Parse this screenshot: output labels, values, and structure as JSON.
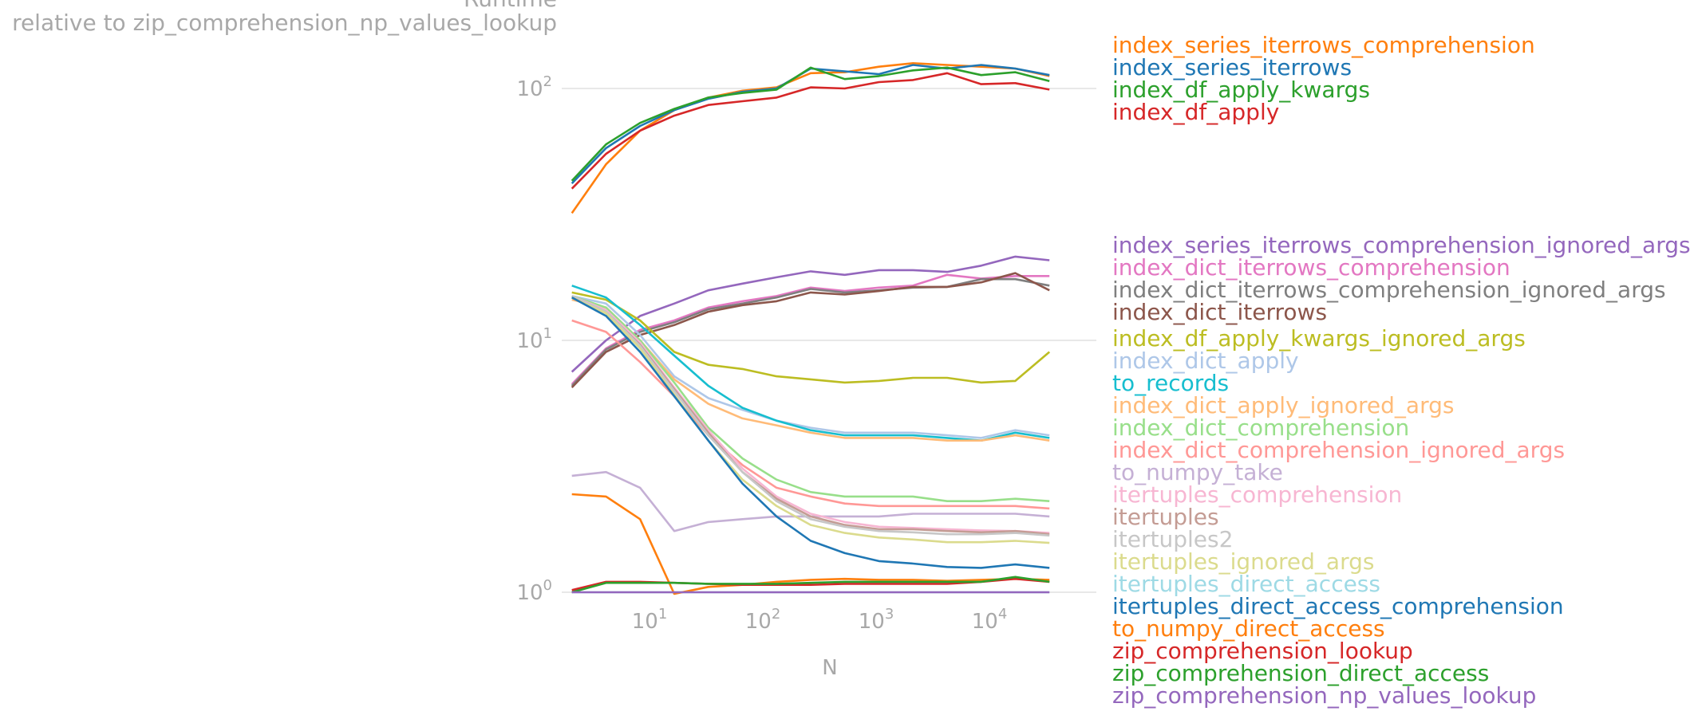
{
  "chart_data": {
    "type": "line",
    "title": "",
    "xlabel": "N",
    "ylabel_lines": [
      "Runtime",
      "relative to zip_comprehension_np_values_lookup"
    ],
    "x_scale": "log",
    "y_scale": "log",
    "xlim": [
      2,
      32768
    ],
    "ylim": [
      1,
      140
    ],
    "grid": "horizontal",
    "legend_placement": "right",
    "x_ticks": [
      {
        "base": "10",
        "exp": "1",
        "value": 10
      },
      {
        "base": "10",
        "exp": "2",
        "value": 100
      },
      {
        "base": "10",
        "exp": "3",
        "value": 1000
      },
      {
        "base": "10",
        "exp": "4",
        "value": 10000
      }
    ],
    "y_ticks": [
      {
        "base": "10",
        "exp": "0",
        "value": 1
      },
      {
        "base": "10",
        "exp": "1",
        "value": 10
      },
      {
        "base": "10",
        "exp": "2",
        "value": 100
      }
    ],
    "x": [
      2,
      4,
      8,
      16,
      32,
      64,
      128,
      256,
      512,
      1024,
      2048,
      4096,
      8192,
      16384,
      32768
    ],
    "series": [
      {
        "name": "index_series_iterrows_comprehension",
        "color": "#ff7f0e",
        "values": [
          32,
          50,
          68,
          82,
          92,
          98,
          101,
          115,
          116,
          122,
          126,
          124,
          122,
          120,
          112
        ]
      },
      {
        "name": "index_series_iterrows",
        "color": "#1f77b4",
        "values": [
          42,
          58,
          71,
          82,
          91,
          97,
          100,
          120,
          117,
          114,
          124,
          120,
          124,
          120,
          113
        ]
      },
      {
        "name": "index_df_apply_kwargs",
        "color": "#2ca02c",
        "values": [
          43,
          60,
          73,
          83,
          92,
          96,
          99,
          121,
          109,
          112,
          118,
          121,
          113,
          116,
          107
        ]
      },
      {
        "name": "index_df_apply",
        "color": "#d62728",
        "values": [
          40,
          55,
          68,
          78,
          86,
          89,
          92,
          101,
          100,
          106,
          108,
          115,
          104,
          105,
          99
        ]
      },
      {
        "name": "index_series_iterrows_comprehension_ignored_args",
        "color": "#9467bd",
        "values": [
          7.5,
          10.0,
          12.5,
          14.0,
          15.8,
          16.8,
          17.8,
          18.8,
          18.2,
          19.0,
          19.0,
          18.7,
          19.8,
          21.5,
          20.8
        ]
      },
      {
        "name": "index_dict_iterrows_comprehension",
        "color": "#e377c2",
        "values": [
          6.7,
          9.3,
          11.0,
          12.0,
          13.5,
          14.3,
          15.0,
          16.2,
          15.7,
          16.2,
          16.5,
          18.2,
          17.6,
          18.0,
          18.0
        ]
      },
      {
        "name": "index_dict_iterrows_comprehension_ignored_args",
        "color": "#7f7f7f",
        "values": [
          6.6,
          9.2,
          10.8,
          11.8,
          13.3,
          14.0,
          14.8,
          16.0,
          15.5,
          15.8,
          16.2,
          16.3,
          17.5,
          17.5,
          16.5
        ]
      },
      {
        "name": "index_dict_iterrows",
        "color": "#8c564b",
        "values": [
          6.5,
          9.0,
          10.5,
          11.5,
          13.0,
          13.8,
          14.3,
          15.5,
          15.2,
          15.7,
          16.3,
          16.3,
          17.0,
          18.5,
          15.8
        ]
      },
      {
        "name": "index_df_apply_kwargs_ignored_args",
        "color": "#bcbd22",
        "values": [
          15.5,
          14.5,
          12.0,
          9.0,
          8.0,
          7.7,
          7.2,
          7.0,
          6.8,
          6.9,
          7.1,
          7.1,
          6.8,
          6.9,
          9.0
        ]
      },
      {
        "name": "index_dict_apply",
        "color": "#aec7e8",
        "values": [
          15.0,
          14.0,
          10.5,
          7.2,
          5.9,
          5.3,
          4.8,
          4.5,
          4.3,
          4.3,
          4.3,
          4.2,
          4.1,
          4.4,
          4.2
        ]
      },
      {
        "name": "to_records",
        "color": "#17becf",
        "values": [
          16.5,
          14.8,
          11.5,
          8.7,
          6.6,
          5.4,
          4.8,
          4.4,
          4.2,
          4.2,
          4.2,
          4.1,
          4.0,
          4.3,
          4.1
        ]
      },
      {
        "name": "index_dict_apply_ignored_args",
        "color": "#ffbb78",
        "values": [
          14.5,
          13.5,
          10.0,
          7.0,
          5.6,
          4.9,
          4.6,
          4.3,
          4.1,
          4.1,
          4.1,
          4.0,
          4.0,
          4.2,
          4.0
        ]
      },
      {
        "name": "index_dict_comprehension",
        "color": "#98df8a",
        "values": [
          15.0,
          13.5,
          10.0,
          6.8,
          4.5,
          3.4,
          2.8,
          2.5,
          2.4,
          2.4,
          2.4,
          2.3,
          2.3,
          2.35,
          2.3
        ]
      },
      {
        "name": "index_dict_comprehension_ignored_args",
        "color": "#ff9896",
        "values": [
          12.0,
          10.8,
          8.2,
          6.0,
          4.2,
          3.2,
          2.6,
          2.4,
          2.25,
          2.2,
          2.2,
          2.2,
          2.2,
          2.2,
          2.15
        ]
      },
      {
        "name": "to_numpy_take",
        "color": "#c5b0d5",
        "values": [
          2.9,
          3.0,
          2.6,
          1.75,
          1.9,
          1.95,
          2.0,
          2.0,
          2.0,
          2.0,
          2.05,
          2.05,
          2.05,
          2.05,
          2.0
        ]
      },
      {
        "name": "itertuples_comprehension",
        "color": "#f7b6d2",
        "values": [
          15.0,
          13.2,
          9.8,
          6.5,
          4.4,
          3.1,
          2.4,
          2.05,
          1.9,
          1.82,
          1.8,
          1.78,
          1.76,
          1.75,
          1.72
        ]
      },
      {
        "name": "itertuples",
        "color": "#c49c94",
        "values": [
          15.0,
          13.0,
          9.6,
          6.4,
          4.3,
          3.0,
          2.35,
          2.0,
          1.85,
          1.78,
          1.78,
          1.75,
          1.73,
          1.75,
          1.7
        ]
      },
      {
        "name": "itertuples2",
        "color": "#c7c7c7",
        "values": [
          15.0,
          13.0,
          9.5,
          6.3,
          4.2,
          3.0,
          2.3,
          1.95,
          1.82,
          1.75,
          1.73,
          1.7,
          1.7,
          1.72,
          1.68
        ]
      },
      {
        "name": "itertuples_ignored_args",
        "color": "#dbdb8d",
        "values": [
          14.8,
          12.8,
          9.3,
          6.1,
          4.0,
          2.8,
          2.2,
          1.85,
          1.72,
          1.65,
          1.62,
          1.58,
          1.58,
          1.6,
          1.57
        ]
      },
      {
        "name": "itertuples_direct_access",
        "color": "#9edae5",
        "values": [
          1.0,
          1.0,
          1.0,
          1.0,
          1.0,
          1.0,
          1.0,
          1.0,
          1.0,
          1.0,
          1.0,
          1.0,
          1.0,
          1.0,
          1.0
        ]
      },
      {
        "name": "itertuples_direct_access_comprehension",
        "color": "#1f77b4",
        "values": [
          14.8,
          12.5,
          9.0,
          6.0,
          4.0,
          2.7,
          2.0,
          1.6,
          1.43,
          1.33,
          1.3,
          1.26,
          1.25,
          1.29,
          1.25
        ]
      },
      {
        "name": "to_numpy_direct_access",
        "color": "#ff7f0e",
        "values": [
          2.45,
          2.4,
          1.95,
          0.98,
          1.05,
          1.07,
          1.1,
          1.12,
          1.13,
          1.12,
          1.12,
          1.11,
          1.12,
          1.13,
          1.12
        ]
      },
      {
        "name": "zip_comprehension_lookup",
        "color": "#d62728",
        "values": [
          1.02,
          1.1,
          1.1,
          1.09,
          1.08,
          1.07,
          1.07,
          1.07,
          1.08,
          1.08,
          1.08,
          1.08,
          1.1,
          1.13,
          1.1
        ]
      },
      {
        "name": "zip_comprehension_direct_access",
        "color": "#2ca02c",
        "values": [
          1.0,
          1.09,
          1.09,
          1.09,
          1.08,
          1.08,
          1.08,
          1.09,
          1.1,
          1.1,
          1.1,
          1.1,
          1.1,
          1.15,
          1.1
        ]
      },
      {
        "name": "zip_comprehension_np_values_lookup",
        "color": "#9467bd",
        "values": [
          1.0,
          1.0,
          1.0,
          1.0,
          1.0,
          1.0,
          1.0,
          1.0,
          1.0,
          1.0,
          1.0,
          1.0,
          1.0,
          1.0,
          1.0
        ]
      }
    ]
  }
}
